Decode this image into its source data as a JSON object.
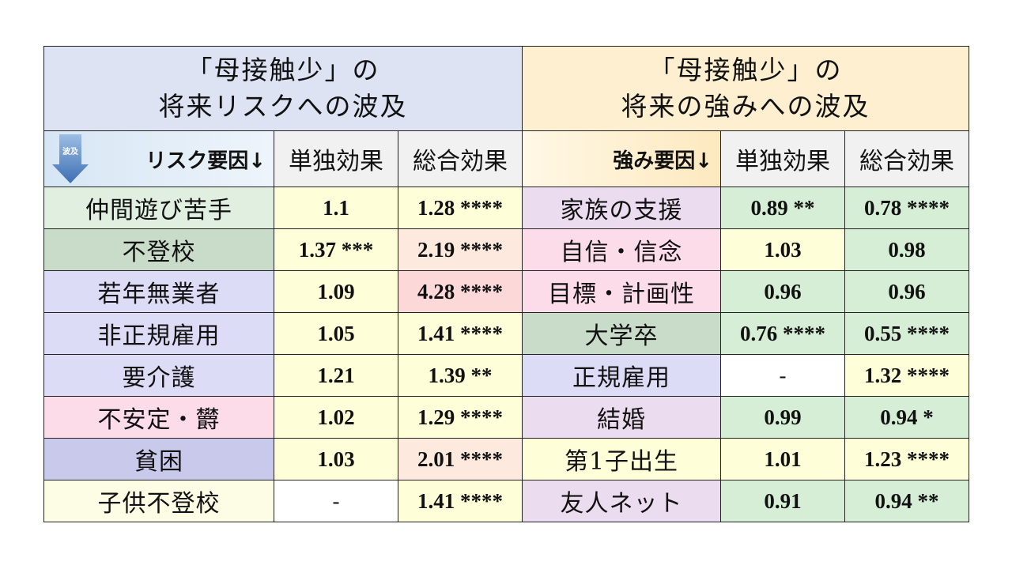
{
  "header": {
    "risk_line1": "「母接触少」の",
    "risk_line2": "将来リスクへの波及",
    "strength_line1": "「母接触少」の",
    "strength_line2": "将来の強みへの波及"
  },
  "columns": {
    "risk_factor": "リスク要因↓",
    "strength_factor": "強み要因↓",
    "single_effect": "単独効果",
    "total_effect": "総合効果",
    "arrow_icon_text": "波及"
  },
  "colors": {
    "risk_header_bg": "#dde3f3",
    "strength_header_bg": "#fdefcf",
    "arrow_blue": "#4a78b8"
  },
  "rows": [
    {
      "risk": "仲間遊び苦手",
      "risk_bg": "#e0efdf",
      "risk_single": "1.1",
      "risk_single_bg": "#fefed9",
      "risk_total": "1.28 ****",
      "risk_total_bg": "#fefed9",
      "strength": "家族の支援",
      "strength_bg": "#ecdcef",
      "str_single": "0.89 **",
      "str_single_bg": "#d5eed5",
      "str_total": "0.78 ****",
      "str_total_bg": "#d5eed5"
    },
    {
      "risk": "不登校",
      "risk_bg": "#c9dcc9",
      "risk_single": "1.37 ***",
      "risk_single_bg": "#fefed9",
      "risk_total": "2.19 ****",
      "risk_total_bg": "#fde9dd",
      "strength": "自信・信念",
      "strength_bg": "#fddcea",
      "str_single": "1.03",
      "str_single_bg": "#fefed9",
      "str_total": "0.98",
      "str_total_bg": "#d5eed5"
    },
    {
      "risk": "若年無業者",
      "risk_bg": "#dcdcf7",
      "risk_single": "1.09",
      "risk_single_bg": "#fefed9",
      "risk_total": "4.28 ****",
      "risk_total_bg": "#fcd8d8",
      "strength": "目標・計画性",
      "strength_bg": "#fddcea",
      "str_single": "0.96",
      "str_single_bg": "#d5eed5",
      "str_total": "0.96",
      "str_total_bg": "#d5eed5"
    },
    {
      "risk": "非正規雇用",
      "risk_bg": "#dcdcf7",
      "risk_single": "1.05",
      "risk_single_bg": "#fefed9",
      "risk_total": "1.41 ****",
      "risk_total_bg": "#fefed9",
      "strength": "大学卒",
      "strength_bg": "#c9dcc9",
      "str_single": "0.76 ****",
      "str_single_bg": "#d5eed5",
      "str_total": "0.55 ****",
      "str_total_bg": "#d5eed5"
    },
    {
      "risk": "要介護",
      "risk_bg": "#dcdcf7",
      "risk_single": "1.21",
      "risk_single_bg": "#fefed9",
      "risk_total": "1.39 **",
      "risk_total_bg": "#fefed9",
      "strength": "正規雇用",
      "strength_bg": "#dcdcf7",
      "str_single": "-",
      "str_single_bg": "#ffffff",
      "str_total": "1.32 ****",
      "str_total_bg": "#fefed9"
    },
    {
      "risk": "不安定・欝",
      "risk_bg": "#fddcea",
      "risk_single": "1.02",
      "risk_single_bg": "#fefed9",
      "risk_total": "1.29 ****",
      "risk_total_bg": "#fefed9",
      "strength": "結婚",
      "strength_bg": "#ecdcef",
      "str_single": "0.99",
      "str_single_bg": "#d5eed5",
      "str_total": "0.94 *",
      "str_total_bg": "#d5eed5"
    },
    {
      "risk": "貧困",
      "risk_bg": "#c9c9ec",
      "risk_single": "1.03",
      "risk_single_bg": "#fefed9",
      "risk_total": "2.01 ****",
      "risk_total_bg": "#fde9dd",
      "strength": "第1子出生",
      "strength_bg": "#fefed9",
      "str_single": "1.01",
      "str_single_bg": "#fefed9",
      "str_total": "1.23 ****",
      "str_total_bg": "#fefed9"
    },
    {
      "risk": "子供不登校",
      "risk_bg": "#fdfde6",
      "risk_single": "-",
      "risk_single_bg": "#ffffff",
      "risk_total": "1.41 ****",
      "risk_total_bg": "#fefed9",
      "strength": "友人ネット",
      "strength_bg": "#ecdcef",
      "str_single": "0.91",
      "str_single_bg": "#d5eed5",
      "str_total": "0.94 **",
      "str_total_bg": "#d5eed5"
    }
  ]
}
